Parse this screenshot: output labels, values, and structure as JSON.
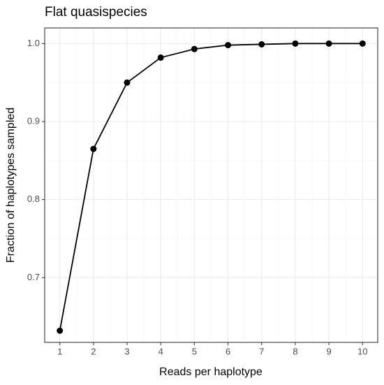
{
  "chart_data": {
    "type": "line",
    "title": "Flat quasispecies",
    "x_label": "Reads per haplotype",
    "y_label": "Fraction of haplotypes sampled",
    "x": [
      1,
      2,
      3,
      4,
      5,
      6,
      7,
      8,
      9,
      10
    ],
    "series": [
      {
        "name": "Flat quasispecies",
        "color": "#000000",
        "values": [
          0.632,
          0.865,
          0.95,
          0.982,
          0.993,
          0.998,
          0.999,
          1.0,
          1.0,
          1.0
        ]
      }
    ],
    "xlim": [
      0.55,
      10.45
    ],
    "xticks": [
      1,
      2,
      3,
      4,
      5,
      6,
      7,
      8,
      9,
      10
    ],
    "ylim": [
      0.617,
      1.02
    ],
    "yticks": [
      0.7,
      0.8,
      0.9,
      {
        "value": 1,
        "label": "1.0"
      }
    ],
    "grid": true,
    "markers": true
  }
}
